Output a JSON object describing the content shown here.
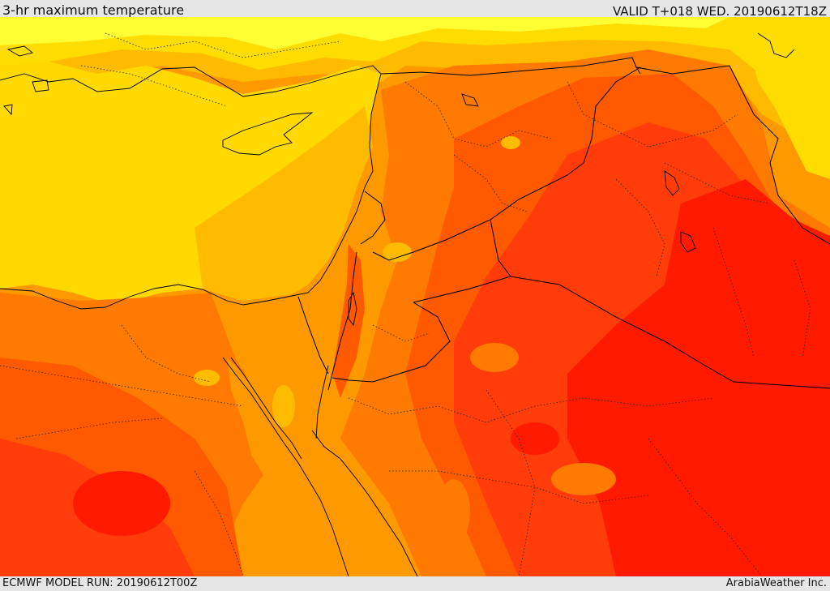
{
  "header": {
    "title": "3-hr maximum temperature",
    "valid": "VALID T+018 WED. 20190612T18Z"
  },
  "footer": {
    "model_run": "ECMWF MODEL RUN: 20190612T00Z",
    "credit": "ArabiaWeather Inc."
  },
  "map": {
    "field": "3-hr maximum temperature",
    "colors": {
      "pale_yellow": "#ffff33",
      "yellow": "#ffdd00",
      "yellow_orange": "#ffbb00",
      "orange": "#ff9900",
      "dark_orange": "#ff7a00",
      "red_orange": "#ff5a00",
      "orange_red": "#ff3c0a",
      "red": "#ff1a00",
      "sea_overlay": "#ffd900",
      "border_line": "#000000"
    },
    "features": [
      "mediterranean-sea",
      "cyprus",
      "red-sea",
      "gulf-of-aqaba",
      "gulf-of-suez",
      "dead-sea",
      "lake-tharthar",
      "euphrates-lakes",
      "country-borders",
      "admin-borders"
    ]
  }
}
